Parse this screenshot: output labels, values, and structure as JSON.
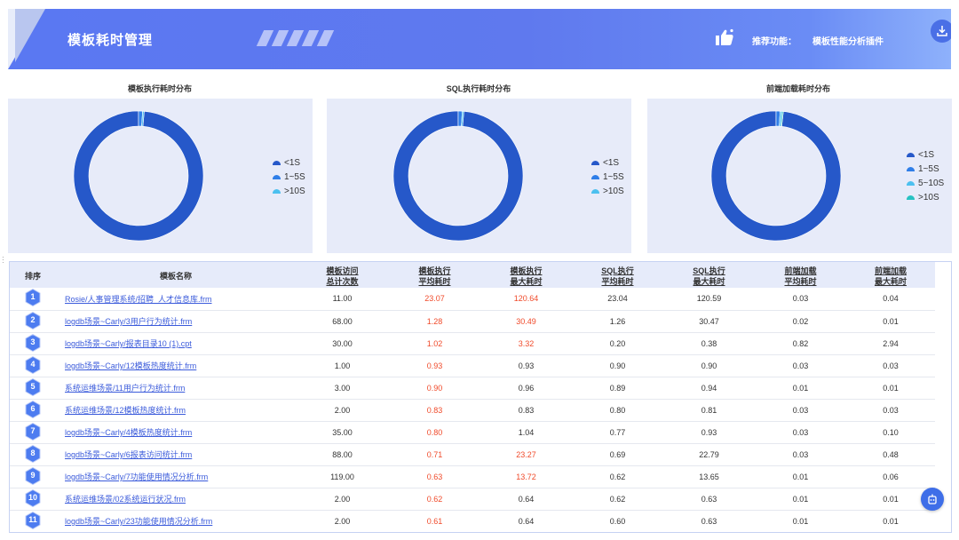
{
  "header": {
    "title": "模板耗时管理",
    "recommend_label": "推荐功能：",
    "recommend_link": "模板性能分析插件"
  },
  "colors": {
    "header_start": "#5a78f2",
    "header_end": "#8eb1fb",
    "panel_bg": "#e7ebf9",
    "slow_value": "#f04a2a",
    "link": "#3b5bdb"
  },
  "icons": {
    "download": "download-icon",
    "thumb": "thumbs-up-icon",
    "float": "robot-icon",
    "rank": "hexagon-badge"
  },
  "chart_data": [
    {
      "type": "pie",
      "title": "模板执行耗时分布",
      "labels": [
        "<1S",
        "1~5S",
        ">10S"
      ],
      "colors": [
        "#2658c9",
        "#2f7ee8",
        "#4cc0ef"
      ],
      "values": [
        98.6,
        1.0,
        0.4
      ]
    },
    {
      "type": "pie",
      "title": "SQL执行耗时分布",
      "labels": [
        "<1S",
        "1~5S",
        ">10S"
      ],
      "colors": [
        "#2658c9",
        "#2f7ee8",
        "#4cc0ef"
      ],
      "values": [
        98.6,
        1.0,
        0.4
      ]
    },
    {
      "type": "pie",
      "title": "前端加载耗时分布",
      "labels": [
        "<1S",
        "1~5S",
        "5~10S",
        ">10S"
      ],
      "colors": [
        "#2658c9",
        "#2f7ee8",
        "#4cc0ef",
        "#27c2c2"
      ],
      "values": [
        98.2,
        1.0,
        0.5,
        0.3
      ]
    }
  ],
  "table": {
    "headers": [
      [
        "排序"
      ],
      [
        "模板名称"
      ],
      [
        "模板访问",
        "总计次数"
      ],
      [
        "模板执行",
        "平均耗时"
      ],
      [
        "模板执行",
        "最大耗时"
      ],
      [
        "SQL执行",
        "平均耗时"
      ],
      [
        "SQL执行",
        "最大耗时"
      ],
      [
        "前端加载",
        "平均耗时"
      ],
      [
        "前端加载",
        "最大耗时"
      ]
    ],
    "rows": [
      {
        "rank": "1",
        "name": "Rosie/人事管理系统/招聘_人才信息库.frm",
        "visits": "11.00",
        "tpl_avg": "23.07",
        "tpl_max": "120.64",
        "sql_avg": "23.04",
        "sql_max": "120.59",
        "fe_avg": "0.03",
        "fe_max": "0.04",
        "max_red": true
      },
      {
        "rank": "2",
        "name": "logdb场景~Carly/3用户行为统计.frm",
        "visits": "68.00",
        "tpl_avg": "1.28",
        "tpl_max": "30.49",
        "sql_avg": "1.26",
        "sql_max": "30.47",
        "fe_avg": "0.02",
        "fe_max": "0.01",
        "max_red": true
      },
      {
        "rank": "3",
        "name": "logdb场景~Carly/报表目录10 (1).cpt",
        "visits": "30.00",
        "tpl_avg": "1.02",
        "tpl_max": "3.32",
        "sql_avg": "0.20",
        "sql_max": "0.38",
        "fe_avg": "0.82",
        "fe_max": "2.94",
        "max_red": true
      },
      {
        "rank": "4",
        "name": "logdb场景~Carly/12模板热度统计.frm",
        "visits": "1.00",
        "tpl_avg": "0.93",
        "tpl_max": "0.93",
        "sql_avg": "0.90",
        "sql_max": "0.90",
        "fe_avg": "0.03",
        "fe_max": "0.03",
        "max_red": false
      },
      {
        "rank": "5",
        "name": "系统运维场景/11用户行为统计.frm",
        "visits": "3.00",
        "tpl_avg": "0.90",
        "tpl_max": "0.96",
        "sql_avg": "0.89",
        "sql_max": "0.94",
        "fe_avg": "0.01",
        "fe_max": "0.01",
        "max_red": false
      },
      {
        "rank": "6",
        "name": "系统运维场景/12模板热度统计.frm",
        "visits": "2.00",
        "tpl_avg": "0.83",
        "tpl_max": "0.83",
        "sql_avg": "0.80",
        "sql_max": "0.81",
        "fe_avg": "0.03",
        "fe_max": "0.03",
        "max_red": false
      },
      {
        "rank": "7",
        "name": "logdb场景~Carly/4模板热度统计.frm",
        "visits": "35.00",
        "tpl_avg": "0.80",
        "tpl_max": "1.04",
        "sql_avg": "0.77",
        "sql_max": "0.93",
        "fe_avg": "0.03",
        "fe_max": "0.10",
        "max_red": false
      },
      {
        "rank": "8",
        "name": "logdb场景~Carly/6报表访问统计.frm",
        "visits": "88.00",
        "tpl_avg": "0.71",
        "tpl_max": "23.27",
        "sql_avg": "0.69",
        "sql_max": "22.79",
        "fe_avg": "0.03",
        "fe_max": "0.48",
        "max_red": true
      },
      {
        "rank": "9",
        "name": "logdb场景~Carly/7功能使用情况分析.frm",
        "visits": "119.00",
        "tpl_avg": "0.63",
        "tpl_max": "13.72",
        "sql_avg": "0.62",
        "sql_max": "13.65",
        "fe_avg": "0.01",
        "fe_max": "0.06",
        "max_red": true
      },
      {
        "rank": "10",
        "name": "系统运维场景/02系统运行状况.frm",
        "visits": "2.00",
        "tpl_avg": "0.62",
        "tpl_max": "0.64",
        "sql_avg": "0.62",
        "sql_max": "0.63",
        "fe_avg": "0.01",
        "fe_max": "0.01",
        "max_red": false
      },
      {
        "rank": "11",
        "name": "logdb场景~Carly/23功能使用情况分析.frm",
        "visits": "2.00",
        "tpl_avg": "0.61",
        "tpl_max": "0.64",
        "sql_avg": "0.60",
        "sql_max": "0.63",
        "fe_avg": "0.01",
        "fe_max": "0.01",
        "max_red": false
      }
    ]
  }
}
